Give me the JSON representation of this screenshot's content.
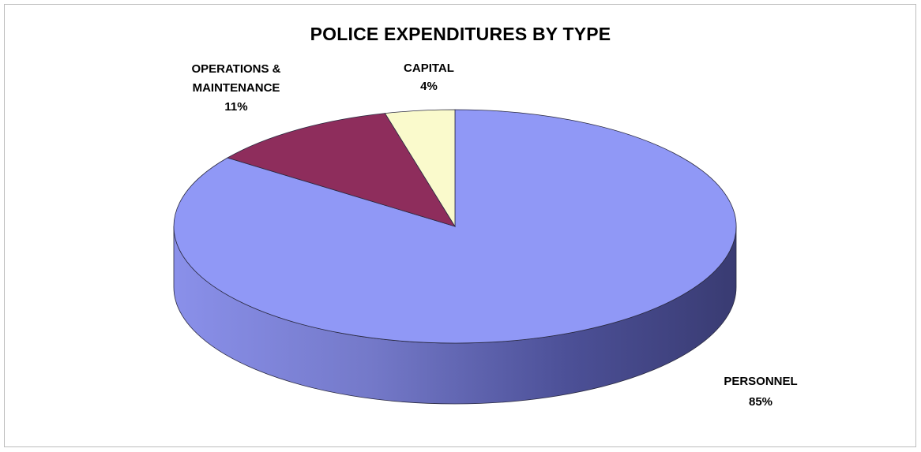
{
  "chart_data": {
    "type": "pie",
    "title": "POLICE EXPENDITURES BY TYPE",
    "slices": [
      {
        "label": "PERSONNEL",
        "value": 85,
        "value_label": "85%",
        "color": "#9098f6"
      },
      {
        "label": "OPERATIONS &",
        "label_line2": "MAINTENANCE",
        "value": 11,
        "value_label": "11%",
        "color": "#8e2d5c"
      },
      {
        "label": "CAPITAL",
        "value": 4,
        "value_label": "4%",
        "color": "#fafacc"
      }
    ],
    "legend": "none",
    "three_d": true
  }
}
